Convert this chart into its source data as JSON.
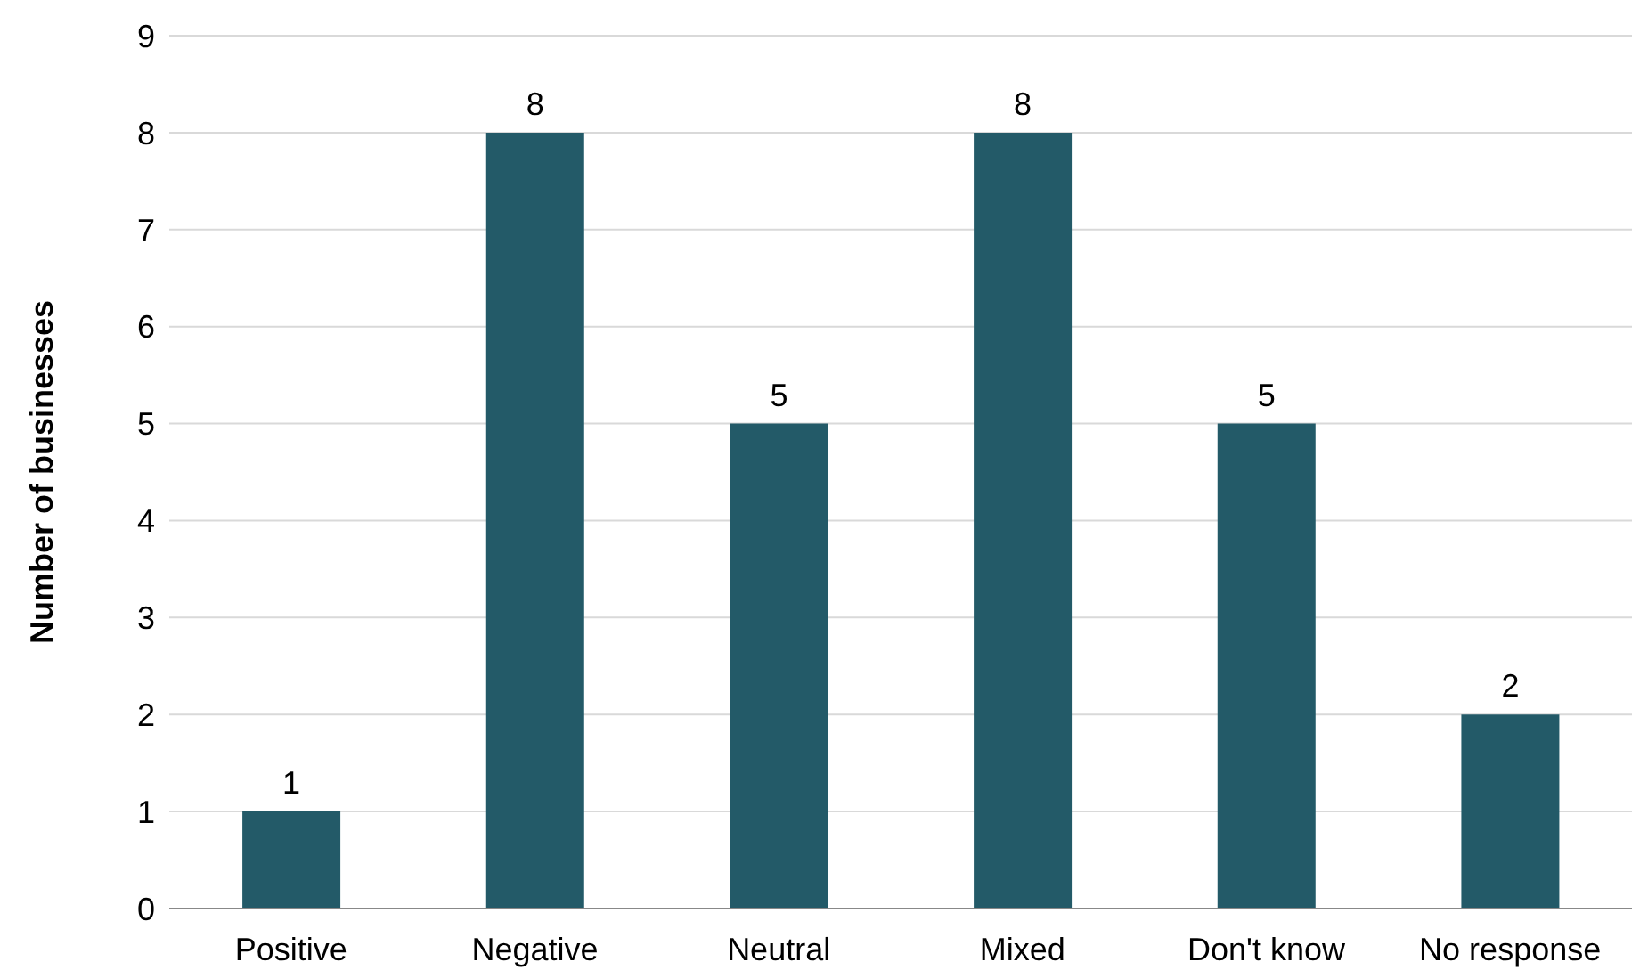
{
  "chart_data": {
    "type": "bar",
    "ylabel": "Number of businesses",
    "categories": [
      "Positive",
      "Negative",
      "Neutral",
      "Mixed",
      "Don't know",
      "No response"
    ],
    "values": [
      1,
      8,
      5,
      8,
      5,
      2
    ],
    "color": "#235a68",
    "ylim": [
      0,
      9
    ],
    "yticks": [
      0,
      1,
      2,
      3,
      4,
      5,
      6,
      7,
      8,
      9
    ],
    "grid": "y",
    "data_labels": true
  }
}
